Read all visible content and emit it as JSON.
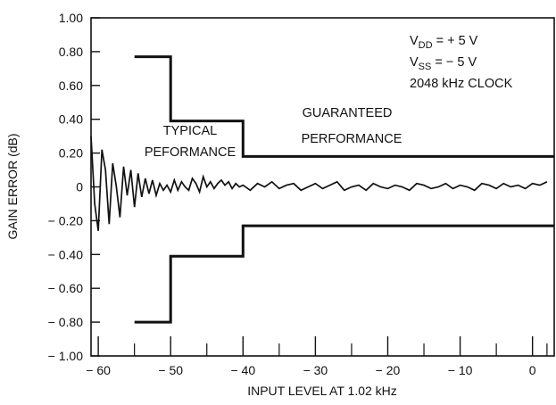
{
  "chart_data": {
    "type": "line",
    "title": "",
    "xlabel": "INPUT LEVEL AT 1.02 kHz",
    "ylabel": "GAIN ERROR (dB)",
    "xlim": [
      -61,
      3
    ],
    "ylim": [
      -1.0,
      1.0
    ],
    "grid": false,
    "x_ticks": [
      -60,
      -50,
      -40,
      -30,
      -20,
      -10,
      0
    ],
    "x_tick_labels": [
      "− 60",
      "− 50",
      "− 40",
      "− 30",
      "− 20",
      "− 10",
      "0"
    ],
    "x_minor_ticks": [
      -55,
      -45,
      -35,
      -25,
      -15,
      -5,
      2
    ],
    "y_ticks": [
      1.0,
      0.8,
      0.6,
      0.4,
      0.2,
      0,
      -0.2,
      -0.4,
      -0.6,
      -0.8,
      -1.0
    ],
    "y_tick_labels": [
      "1.00",
      "0.80",
      "0.60",
      "0.40",
      "0.20",
      "0",
      "− 0.20",
      "− 0.40",
      "− 0.60",
      "− 0.80",
      "− 1.00"
    ],
    "series": [
      {
        "x": [
          -61,
          -60.5,
          -60,
          -59.5,
          -59,
          -58.5,
          -58,
          -57.5,
          -57,
          -56.5,
          -56,
          -55.5,
          -55,
          -54.5,
          -54,
          -53.5,
          -53,
          -52.5,
          -52,
          -51.5,
          -51,
          -50.5,
          -50,
          -49.5,
          -49,
          -48.5,
          -48,
          -47.5,
          -47,
          -46.5,
          -46,
          -45.5,
          -45,
          -44.5,
          -44,
          -43.5,
          -43,
          -42.5,
          -42,
          -41.5,
          -41,
          -40.5,
          -40,
          -39,
          -38,
          -37,
          -36,
          -35,
          -34,
          -33,
          -32,
          -31,
          -30,
          -29,
          -28,
          -27,
          -26,
          -25,
          -24,
          -23,
          -22,
          -21,
          -20,
          -19,
          -18,
          -17,
          -16,
          -15,
          -14,
          -13,
          -12,
          -11,
          -10,
          -9,
          -8,
          -7,
          -6,
          -5,
          -4,
          -3,
          -2,
          -1,
          0,
          1,
          2
        ],
        "values": [
          0.3,
          -0.1,
          -0.26,
          0.22,
          0.1,
          -0.22,
          0.14,
          0.0,
          -0.18,
          0.12,
          -0.05,
          0.1,
          -0.12,
          0.08,
          -0.06,
          0.05,
          -0.04,
          0.04,
          -0.05,
          0.02,
          -0.02,
          0.01,
          -0.03,
          0.04,
          -0.02,
          0.03,
          0.0,
          -0.02,
          0.05,
          0.02,
          -0.03,
          0.06,
          0.0,
          0.03,
          -0.01,
          0.02,
          0.04,
          0.01,
          0.03,
          -0.01,
          0.02,
          0.0,
          0.01,
          -0.02,
          0.02,
          0.0,
          0.03,
          -0.01,
          0.01,
          0.02,
          -0.02,
          0.0,
          0.02,
          -0.01,
          0.01,
          0.03,
          -0.02,
          0.0,
          0.01,
          -0.02,
          0.02,
          0.0,
          -0.01,
          0.01,
          0.0,
          -0.02,
          0.02,
          0.01,
          -0.01,
          0.0,
          0.02,
          -0.01,
          0.01,
          0.0,
          -0.02,
          0.02,
          0.01,
          -0.01,
          0.02,
          0.0,
          0.01,
          -0.01,
          0.02,
          0.01,
          0.03
        ]
      },
      {
        "x": [
          -55,
          -50,
          -50,
          -40,
          -40,
          3
        ],
        "values": [
          0.77,
          0.77,
          0.39,
          0.39,
          0.18,
          0.18
        ]
      },
      {
        "x": [
          -55,
          -50,
          -50,
          -40,
          -40,
          3
        ],
        "values": [
          -0.8,
          -0.8,
          -0.41,
          -0.41,
          -0.23,
          -0.23
        ]
      }
    ],
    "annotations": {
      "vdd_main": "V",
      "vdd_sub": "DD",
      "vdd_rest": " = + 5 V",
      "vss_main": "V",
      "vss_sub": "SS",
      "vss_rest": " = − 5 V",
      "clock": "2048 kHz CLOCK",
      "typical_line1": "TYPICAL",
      "typical_line2": "PEFORMANCE",
      "guaranteed_line1": "GUARANTEED",
      "guaranteed_line2": "PERFORMANCE"
    }
  }
}
